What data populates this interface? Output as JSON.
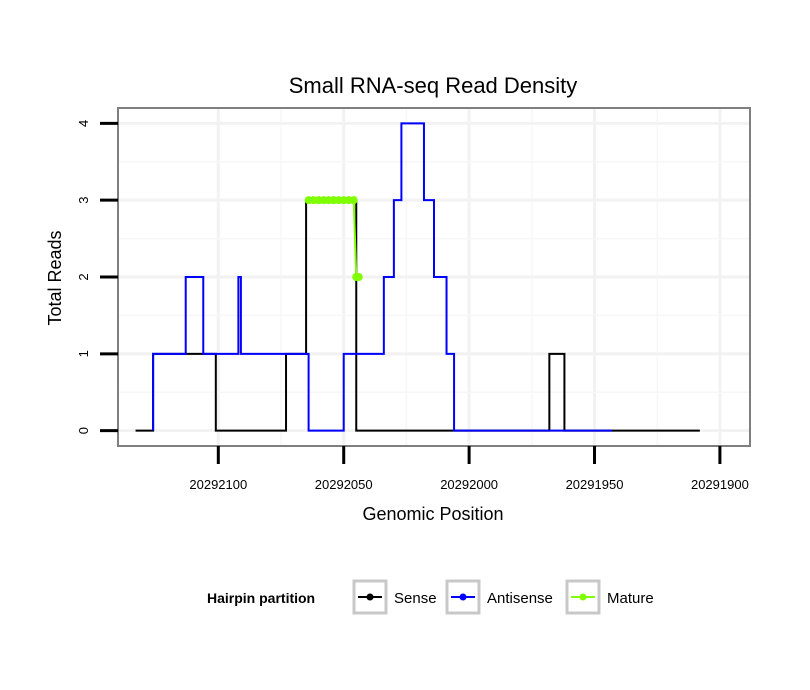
{
  "chart_data": {
    "type": "line",
    "title": "Small RNA-seq Read Density",
    "xlabel": "Genomic Position",
    "ylabel": "Total Reads",
    "x_reversed": true,
    "xlim": [
      20292140,
      20291888
    ],
    "ylim": [
      -0.2,
      4.2
    ],
    "x_ticks": [
      20292100,
      20292050,
      20292000,
      20291950,
      20291900
    ],
    "x_tick_labels": [
      "20292100",
      "20292050",
      "20292000",
      "20291950",
      "20291900"
    ],
    "y_ticks": [
      0,
      1,
      2,
      3,
      4
    ],
    "y_tick_labels": [
      "0",
      "1",
      "2",
      "3",
      "4"
    ],
    "grid": true,
    "legend": {
      "title": "Hairpin partition",
      "position": "bottom",
      "entries": [
        {
          "label": "Sense",
          "color": "#000000"
        },
        {
          "label": "Antisense",
          "color": "#0000ff"
        },
        {
          "label": "Mature",
          "color": "#7fff00"
        }
      ]
    },
    "series": [
      {
        "name": "Sense",
        "color": "#000000",
        "step": true,
        "x": [
          20292133,
          20292126,
          20292119,
          20292101,
          20292080,
          20292073,
          20292065,
          20292047,
          20292045,
          20292029,
          20291988,
          20291968,
          20291962,
          20291943,
          20291908
        ],
        "values": [
          0,
          0,
          1,
          1,
          0,
          0,
          1,
          3,
          3,
          0,
          0,
          0,
          1,
          0,
          0
        ]
      },
      {
        "name": "Antisense",
        "color": "#0000ff",
        "step": true,
        "x": [
          20292126,
          20292113,
          20292106,
          20292092,
          20292091,
          20292086,
          20292080,
          20292072,
          20292064,
          20292051,
          20292050,
          20292037,
          20292034,
          20292030,
          20292027,
          20292024,
          20292018,
          20292014,
          20292009,
          20292006,
          20292002,
          20291997,
          20291988,
          20291962,
          20291943
        ],
        "values": [
          0,
          1,
          2,
          1,
          2,
          1,
          1,
          1,
          1,
          0,
          0,
          1,
          1,
          2,
          3,
          4,
          4,
          3,
          2,
          1,
          0,
          0,
          0,
          0,
          0
        ]
      },
      {
        "name": "Mature",
        "color": "#7fff00",
        "x": [
          20292064,
          20292062,
          20292060,
          20292058,
          20292056,
          20292054,
          20292052,
          20292050,
          20292048,
          20292046,
          20292045,
          20292044
        ],
        "values": [
          3,
          3,
          3,
          3,
          3,
          3,
          3,
          3,
          3,
          3,
          2,
          2
        ]
      }
    ]
  }
}
